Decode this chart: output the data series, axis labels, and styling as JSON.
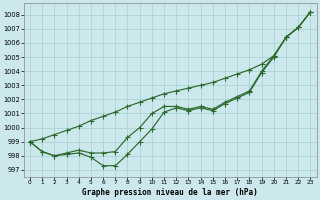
{
  "title": "Graphe pression niveau de la mer (hPa)",
  "bg_color": "#cce8ed",
  "grid_color": "#aad4d4",
  "line_color": "#2d6a2d",
  "x_ticks": [
    0,
    1,
    2,
    3,
    4,
    5,
    6,
    7,
    8,
    9,
    10,
    11,
    12,
    13,
    14,
    15,
    16,
    17,
    18,
    19,
    20,
    21,
    22,
    23
  ],
  "y_ticks": [
    997,
    998,
    999,
    1000,
    1001,
    1002,
    1003,
    1004,
    1005,
    1006,
    1007,
    1008
  ],
  "ylim": [
    996.5,
    1008.8
  ],
  "xlim": [
    -0.5,
    23.5
  ],
  "series_steep": [
    999.0,
    999.2,
    999.5,
    999.8,
    1000.1,
    1000.5,
    1000.8,
    1001.1,
    1001.5,
    1001.8,
    1002.1,
    1002.4,
    1002.6,
    1002.8,
    1003.0,
    1003.2,
    1003.5,
    1003.8,
    1004.1,
    1004.5,
    1005.1,
    1006.4,
    1007.1,
    1008.2
  ],
  "series_mid": [
    999.0,
    998.3,
    998.0,
    998.2,
    998.4,
    998.2,
    998.2,
    998.3,
    999.3,
    1000.0,
    1001.0,
    1001.5,
    1001.5,
    1001.3,
    1001.5,
    1001.3,
    1001.8,
    1002.2,
    1002.6,
    1004.0,
    1005.1,
    1006.4,
    1007.1,
    1008.2
  ],
  "series_dip": [
    999.0,
    998.3,
    998.0,
    998.1,
    998.2,
    997.9,
    997.3,
    997.3,
    998.1,
    999.0,
    999.9,
    1001.1,
    1001.4,
    1001.2,
    1001.4,
    1001.2,
    1001.7,
    1002.1,
    1002.5,
    1003.9,
    1005.0,
    1006.4,
    1007.1,
    1008.2
  ]
}
